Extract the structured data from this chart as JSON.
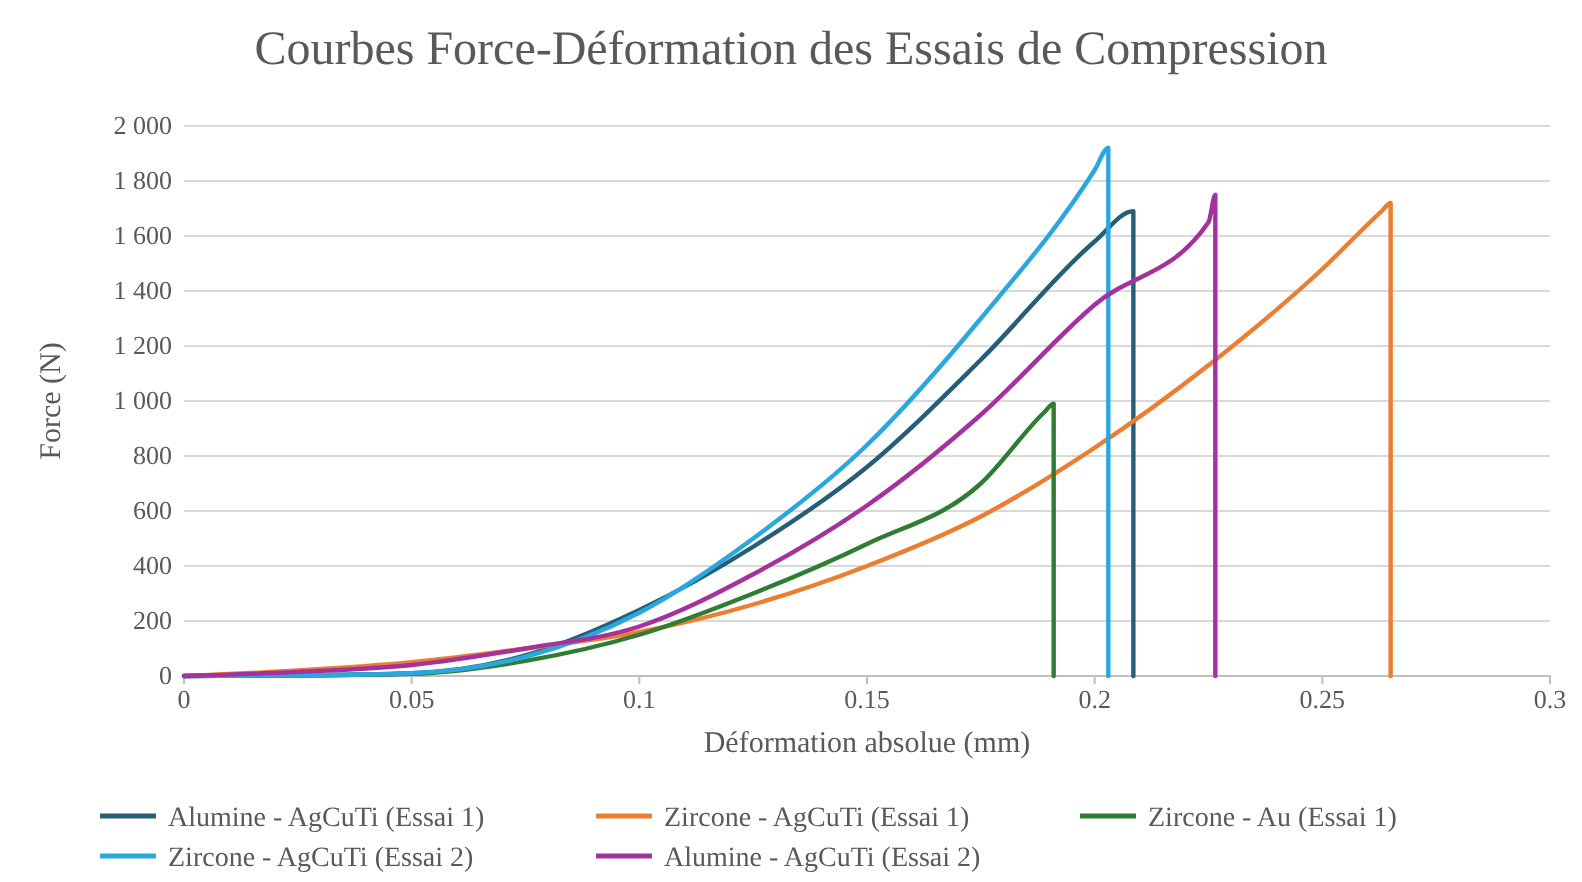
{
  "chart_data": {
    "type": "line",
    "title": "Courbes Force-Déformation des Essais de Compression",
    "xlabel": "Déformation absolue (mm)",
    "ylabel": "Force (N)",
    "xlim": [
      0,
      0.3
    ],
    "xticks": [
      0,
      0.05,
      0.1,
      0.15,
      0.2,
      0.25,
      0.3
    ],
    "ylim": [
      0,
      2000
    ],
    "yticks": [
      {
        "value": 0,
        "label": "0"
      },
      {
        "value": 200,
        "label": "200"
      },
      {
        "value": 400,
        "label": "400"
      },
      {
        "value": 600,
        "label": "600"
      },
      {
        "value": 800,
        "label": "800"
      },
      {
        "value": 1000,
        "label": "1 000"
      },
      {
        "value": 1200,
        "label": "1 200"
      },
      {
        "value": 1400,
        "label": "1 400"
      },
      {
        "value": 1600,
        "label": "1 600"
      },
      {
        "value": 1800,
        "label": "1 800"
      },
      {
        "value": 2000,
        "label": "2 000"
      }
    ],
    "grid": "y",
    "legend": "bottom",
    "marker": "none",
    "line_style": "solid",
    "series": [
      {
        "name": "Alumine - AgCuTi (Essai 1)",
        "color": "#255e79",
        "x": [
          0,
          0.025,
          0.05,
          0.075,
          0.1,
          0.125,
          0.15,
          0.175,
          0.2,
          0.2085,
          0.2085
        ],
        "values": [
          0,
          2,
          10,
          75,
          240,
          470,
          760,
          1150,
          1580,
          1690,
          0
        ]
      },
      {
        "name": "Zircone - AgCuTi (Essai 1)",
        "color": "#ed7d31",
        "x": [
          0,
          0.025,
          0.05,
          0.075,
          0.1,
          0.125,
          0.15,
          0.175,
          0.2,
          0.225,
          0.25,
          0.263,
          0.265,
          0.265
        ],
        "values": [
          0,
          20,
          50,
          100,
          160,
          260,
          400,
          580,
          830,
          1130,
          1480,
          1690,
          1720,
          0
        ]
      },
      {
        "name": "Zircone - Au (Essai 1)",
        "color": "#2e7d32",
        "x": [
          0,
          0.025,
          0.05,
          0.075,
          0.1,
          0.125,
          0.15,
          0.175,
          0.189,
          0.191,
          0.191
        ],
        "values": [
          0,
          2,
          8,
          55,
          150,
          300,
          480,
          700,
          960,
          990,
          0
        ]
      },
      {
        "name": "Zircone - AgCuTi (Essai 2)",
        "color": "#29a8e0",
        "x": [
          0,
          0.025,
          0.05,
          0.075,
          0.1,
          0.125,
          0.15,
          0.175,
          0.2,
          0.203,
          0.203
        ],
        "values": [
          0,
          2,
          10,
          70,
          230,
          500,
          840,
          1300,
          1840,
          1920,
          0
        ]
      },
      {
        "name": "Alumine - AgCuTi (Essai 2)",
        "color": "#a5319e",
        "x": [
          0,
          0.025,
          0.05,
          0.075,
          0.1,
          0.125,
          0.15,
          0.175,
          0.2,
          0.225,
          0.2265,
          0.2265
        ],
        "values": [
          0,
          15,
          40,
          100,
          180,
          370,
          620,
          950,
          1350,
          1650,
          1750,
          0
        ]
      }
    ]
  }
}
